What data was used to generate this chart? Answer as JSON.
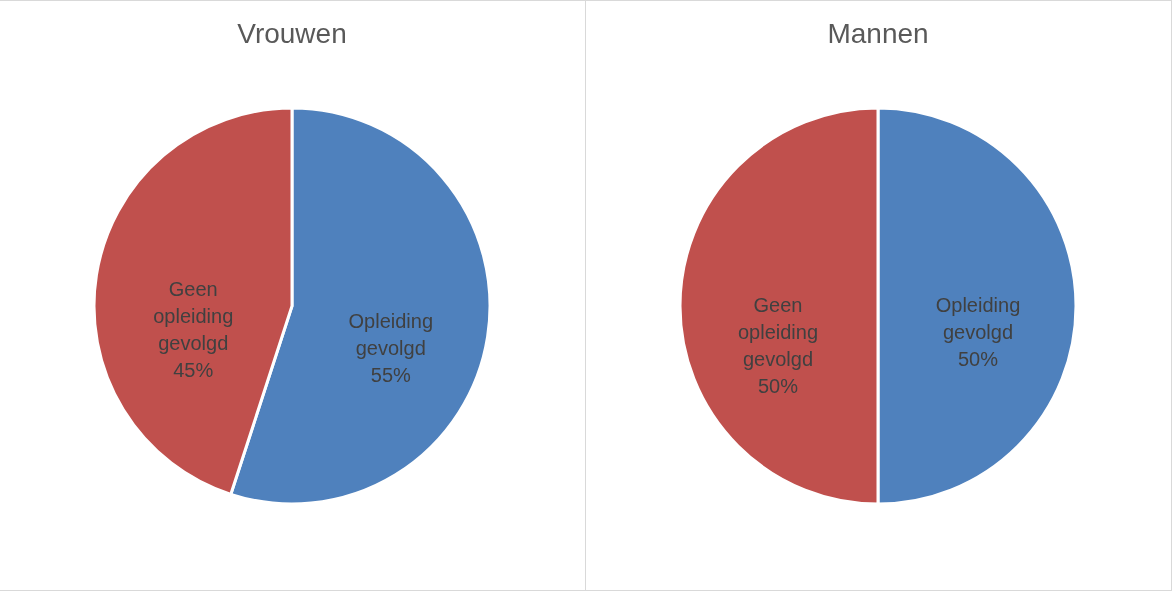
{
  "chart_data": [
    {
      "type": "pie",
      "title": "Vrouwen",
      "categories": [
        "Opleiding gevolgd",
        "Geen opleiding gevolgd"
      ],
      "values": [
        55,
        45
      ],
      "colors": [
        "#4f81bd",
        "#c0504d"
      ],
      "value_labels": [
        "55%",
        "45%"
      ]
    },
    {
      "type": "pie",
      "title": "Mannen",
      "categories": [
        "Opleiding gevolgd",
        "Geen opleiding gevolgd"
      ],
      "values": [
        50,
        50
      ],
      "colors": [
        "#4f81bd",
        "#c0504d"
      ],
      "value_labels": [
        "50%",
        "50%"
      ]
    }
  ]
}
